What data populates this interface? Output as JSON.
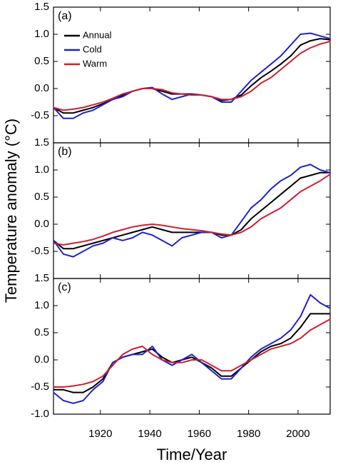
{
  "chart_data": [
    {
      "type": "line",
      "label": "(a)",
      "legend": "upper left",
      "x": [
        1901,
        1905,
        1909,
        1913,
        1917,
        1921,
        1925,
        1929,
        1933,
        1937,
        1941,
        1945,
        1949,
        1953,
        1957,
        1961,
        1965,
        1969,
        1973,
        1977,
        1981,
        1985,
        1989,
        1993,
        1997,
        2001,
        2005,
        2009,
        2013
      ],
      "xlim": [
        1901,
        2013
      ],
      "xticks": [
        1920,
        1940,
        1960,
        1980,
        2000
      ],
      "ylim": [
        -1.0,
        1.5
      ],
      "yticks": [
        -0.5,
        {
          "value": 0,
          "label": "0.0"
        },
        0.5,
        {
          "value": 1,
          "label": "1.0"
        },
        1.5
      ],
      "series": [
        {
          "name": "Annual",
          "color": "#000000",
          "values": [
            -0.35,
            -0.45,
            -0.45,
            -0.4,
            -0.35,
            -0.28,
            -0.2,
            -0.12,
            -0.05,
            0.0,
            0.0,
            -0.05,
            -0.1,
            -0.1,
            -0.1,
            -0.12,
            -0.15,
            -0.22,
            -0.2,
            -0.12,
            0.05,
            0.2,
            0.32,
            0.45,
            0.6,
            0.8,
            0.88,
            0.92,
            0.9
          ]
        },
        {
          "name": "Cold",
          "color": "#1f22cc",
          "values": [
            -0.35,
            -0.55,
            -0.55,
            -0.45,
            -0.4,
            -0.3,
            -0.2,
            -0.15,
            -0.05,
            0.0,
            0.02,
            -0.1,
            -0.2,
            -0.15,
            -0.1,
            -0.12,
            -0.15,
            -0.25,
            -0.25,
            -0.05,
            0.15,
            0.3,
            0.45,
            0.6,
            0.8,
            1.0,
            1.02,
            0.97,
            0.92
          ]
        },
        {
          "name": "Warm",
          "color": "#cc2030",
          "values": [
            -0.35,
            -0.4,
            -0.38,
            -0.35,
            -0.3,
            -0.25,
            -0.18,
            -0.1,
            -0.05,
            0.0,
            0.0,
            -0.02,
            -0.08,
            -0.1,
            -0.12,
            -0.12,
            -0.15,
            -0.2,
            -0.2,
            -0.15,
            -0.05,
            0.1,
            0.2,
            0.35,
            0.5,
            0.65,
            0.75,
            0.82,
            0.87
          ]
        }
      ]
    },
    {
      "type": "line",
      "label": "(b)",
      "ylabel": "Temperature anomaly (°C)",
      "x": [
        1901,
        1905,
        1909,
        1913,
        1917,
        1921,
        1925,
        1929,
        1933,
        1937,
        1941,
        1945,
        1949,
        1953,
        1957,
        1961,
        1965,
        1969,
        1973,
        1977,
        1981,
        1985,
        1989,
        1993,
        1997,
        2001,
        2005,
        2009,
        2013
      ],
      "xlim": [
        1901,
        2013
      ],
      "xticks": [
        1920,
        1940,
        1960,
        1980,
        2000
      ],
      "ylim": [
        -1.0,
        1.5
      ],
      "yticks": [
        -0.5,
        {
          "value": 0,
          "label": "0.0"
        },
        0.5,
        {
          "value": 1,
          "label": "1.0"
        },
        1.5
      ],
      "series": [
        {
          "color": "#000000",
          "values": [
            -0.3,
            -0.45,
            -0.45,
            -0.4,
            -0.35,
            -0.3,
            -0.25,
            -0.2,
            -0.15,
            -0.1,
            -0.05,
            -0.1,
            -0.15,
            -0.15,
            -0.15,
            -0.15,
            -0.15,
            -0.2,
            -0.2,
            -0.1,
            0.1,
            0.25,
            0.4,
            0.55,
            0.7,
            0.85,
            0.9,
            0.95,
            0.95
          ]
        },
        {
          "color": "#1f22cc",
          "values": [
            -0.3,
            -0.55,
            -0.6,
            -0.5,
            -0.4,
            -0.35,
            -0.25,
            -0.3,
            -0.25,
            -0.15,
            -0.2,
            -0.3,
            -0.4,
            -0.25,
            -0.2,
            -0.15,
            -0.15,
            -0.25,
            -0.2,
            0.05,
            0.3,
            0.45,
            0.65,
            0.8,
            0.9,
            1.05,
            1.1,
            1.0,
            0.95
          ]
        },
        {
          "color": "#cc2030",
          "values": [
            -0.35,
            -0.38,
            -0.35,
            -0.32,
            -0.28,
            -0.22,
            -0.15,
            -0.1,
            -0.05,
            -0.02,
            0.0,
            -0.02,
            -0.05,
            -0.08,
            -0.1,
            -0.12,
            -0.15,
            -0.18,
            -0.2,
            -0.15,
            -0.05,
            0.1,
            0.2,
            0.3,
            0.45,
            0.6,
            0.7,
            0.8,
            0.92
          ]
        }
      ]
    },
    {
      "type": "line",
      "label": "(c)",
      "xlabel": "Time/Year",
      "show_xtick_labels": true,
      "x": [
        1901,
        1905,
        1909,
        1913,
        1917,
        1921,
        1925,
        1929,
        1933,
        1937,
        1941,
        1945,
        1949,
        1953,
        1957,
        1961,
        1965,
        1969,
        1973,
        1977,
        1981,
        1985,
        1989,
        1993,
        1997,
        2001,
        2005,
        2009,
        2013
      ],
      "xlim": [
        1901,
        2013
      ],
      "xticks": [
        1920,
        1940,
        1960,
        1980,
        2000
      ],
      "ylim": [
        -1.0,
        1.5
      ],
      "yticks": [
        {
          "value": -1,
          "label": "-1.0"
        },
        -0.5,
        {
          "value": 0,
          "label": "0.0"
        },
        0.5,
        {
          "value": 1,
          "label": "1.0"
        },
        1.5
      ],
      "series": [
        {
          "color": "#000000",
          "values": [
            -0.55,
            -0.55,
            -0.6,
            -0.6,
            -0.5,
            -0.35,
            -0.05,
            0.05,
            0.1,
            0.15,
            0.2,
            0.05,
            -0.05,
            0.0,
            0.05,
            -0.05,
            -0.15,
            -0.3,
            -0.3,
            -0.15,
            0.0,
            0.15,
            0.25,
            0.3,
            0.4,
            0.6,
            0.85,
            0.85,
            0.85
          ]
        },
        {
          "color": "#1f22cc",
          "values": [
            -0.6,
            -0.75,
            -0.8,
            -0.75,
            -0.55,
            -0.4,
            -0.05,
            0.05,
            0.1,
            0.1,
            0.25,
            0.0,
            -0.1,
            0.0,
            0.1,
            -0.05,
            -0.2,
            -0.35,
            -0.35,
            -0.15,
            0.05,
            0.2,
            0.3,
            0.4,
            0.55,
            0.8,
            1.2,
            1.05,
            0.95
          ]
        },
        {
          "color": "#cc2030",
          "values": [
            -0.5,
            -0.5,
            -0.48,
            -0.45,
            -0.4,
            -0.3,
            -0.1,
            0.1,
            0.2,
            0.25,
            0.1,
            0.0,
            -0.05,
            -0.05,
            0.0,
            0.0,
            -0.1,
            -0.2,
            -0.2,
            -0.1,
            0.0,
            0.1,
            0.2,
            0.25,
            0.3,
            0.4,
            0.55,
            0.65,
            0.75
          ]
        }
      ]
    }
  ]
}
